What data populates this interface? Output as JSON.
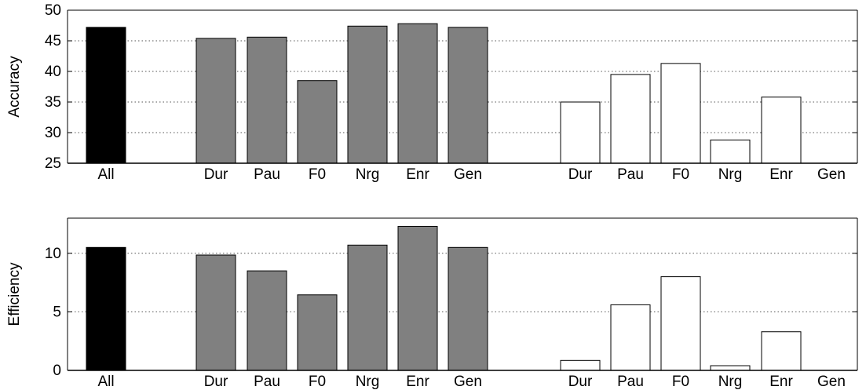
{
  "chart_data": [
    {
      "type": "bar",
      "ylabel": "Accuracy",
      "ylim": [
        25,
        50
      ],
      "yticks": [
        25,
        30,
        35,
        40,
        45,
        50
      ],
      "grid": "dotted-horizontal",
      "categories": [
        "All",
        "Dur",
        "Pau",
        "F0",
        "Nrg",
        "Enr",
        "Gen",
        "Dur",
        "Pau",
        "F0",
        "Nrg",
        "Enr",
        "Gen"
      ],
      "values": [
        47.2,
        45.4,
        45.6,
        38.5,
        47.4,
        47.8,
        47.2,
        35.0,
        39.5,
        41.3,
        28.8,
        35.8,
        25.0
      ],
      "groups": [
        "all",
        "gray",
        "gray",
        "gray",
        "gray",
        "gray",
        "gray",
        "white",
        "white",
        "white",
        "white",
        "white",
        "white"
      ]
    },
    {
      "type": "bar",
      "ylabel": "Efficiency",
      "ylim": [
        0,
        13
      ],
      "yticks": [
        0,
        5,
        10
      ],
      "grid": "dotted-horizontal",
      "categories": [
        "All",
        "Dur",
        "Pau",
        "F0",
        "Nrg",
        "Enr",
        "Gen",
        "Dur",
        "Pau",
        "F0",
        "Nrg",
        "Enr",
        "Gen"
      ],
      "values": [
        10.5,
        9.85,
        8.5,
        6.45,
        10.7,
        12.3,
        10.5,
        0.85,
        5.6,
        8.0,
        0.4,
        3.3,
        0.0
      ],
      "groups": [
        "all",
        "gray",
        "gray",
        "gray",
        "gray",
        "gray",
        "gray",
        "white",
        "white",
        "white",
        "white",
        "white",
        "white"
      ]
    }
  ],
  "colors": {
    "all": "#000000",
    "gray": "#808080",
    "white": "#ffffff",
    "edge": "#000000"
  }
}
